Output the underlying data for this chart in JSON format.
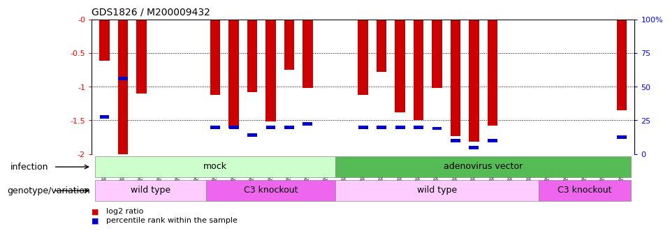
{
  "title": "GDS1826 / M200009432",
  "samples": [
    "GSM87316",
    "GSM87317",
    "GSM93998",
    "GSM93999",
    "GSM94000",
    "GSM94001",
    "GSM93633",
    "GSM93634",
    "GSM93651",
    "GSM93652",
    "GSM93653",
    "GSM93654",
    "GSM93657",
    "GSM86643",
    "GSM87306",
    "GSM87307",
    "GSM87308",
    "GSM87309",
    "GSM87310",
    "GSM87311",
    "GSM87312",
    "GSM87313",
    "GSM87314",
    "GSM87315",
    "GSM93655",
    "GSM93656",
    "GSM93658",
    "GSM93659",
    "GSM93660"
  ],
  "log2_ratios": [
    -0.62,
    -2.0,
    -1.1,
    0.0,
    0.0,
    0.0,
    -1.12,
    -1.62,
    -1.08,
    -1.52,
    -0.75,
    -1.02,
    0.0,
    0.0,
    -1.12,
    -0.78,
    -1.38,
    -1.5,
    -1.02,
    -1.73,
    -1.82,
    -1.58,
    0.0,
    0.0,
    0.0,
    0.0,
    0.0,
    0.0,
    -1.35
  ],
  "percentile_pos": [
    -1.45,
    -0.88,
    null,
    null,
    null,
    null,
    -1.6,
    -1.6,
    -1.72,
    -1.6,
    -1.6,
    -1.55,
    null,
    null,
    -1.6,
    -1.6,
    -1.6,
    -1.6,
    -1.62,
    -1.8,
    -1.9,
    -1.8,
    null,
    null,
    null,
    null,
    null,
    null,
    -1.75
  ],
  "ylim": [
    -2.0,
    0.0
  ],
  "yticks": [
    0.0,
    -0.5,
    -1.0,
    -1.5,
    -2.0
  ],
  "yticklabels": [
    "-0",
    "-0.5",
    "-1",
    "-1.5",
    "-2"
  ],
  "right_yticklabels": [
    "100%",
    "75",
    "50",
    "25",
    "0"
  ],
  "bar_color": "#cc0000",
  "percentile_color": "#0000cc",
  "infection_groups": [
    {
      "label": "mock",
      "start": 0,
      "end": 12,
      "color": "#ccffcc"
    },
    {
      "label": "adenovirus vector",
      "start": 13,
      "end": 28,
      "color": "#55bb55"
    }
  ],
  "genotype_groups": [
    {
      "label": "wild type",
      "start": 0,
      "end": 5,
      "color": "#ffccff"
    },
    {
      "label": "C3 knockout",
      "start": 6,
      "end": 12,
      "color": "#ee66ee"
    },
    {
      "label": "wild type",
      "start": 13,
      "end": 23,
      "color": "#ffccff"
    },
    {
      "label": "C3 knockout",
      "start": 24,
      "end": 28,
      "color": "#ee66ee"
    }
  ],
  "legend_items": [
    {
      "label": "log2 ratio",
      "color": "#cc0000"
    },
    {
      "label": "percentile rank within the sample",
      "color": "#0000cc"
    }
  ],
  "infection_label": "infection",
  "genotype_label": "genotype/variation",
  "bar_width": 0.55
}
